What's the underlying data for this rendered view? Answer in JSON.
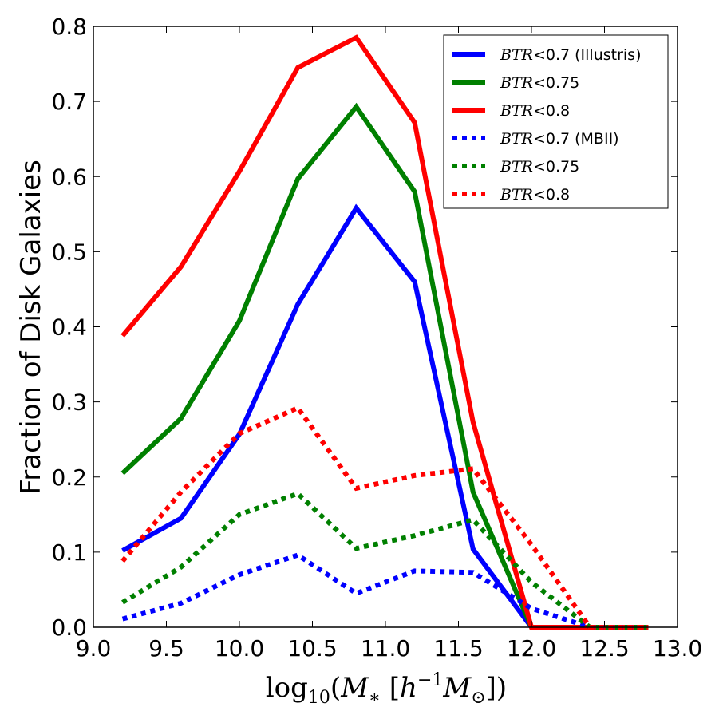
{
  "chart_data": {
    "type": "line",
    "title": "",
    "ylabel": "Fraction of Disk Galaxies",
    "xlabel": {
      "prefix": "log",
      "sub": "10",
      "open": "(",
      "var": "M",
      "var_sub": "∗",
      "bracket_open": " [",
      "h": "h",
      "h_sup": "−1",
      "msun": "M",
      "msun_sub": "⊙",
      "close": "])"
    },
    "xlim": [
      9.0,
      13.0
    ],
    "ylim": [
      0.0,
      0.8
    ],
    "xticks": [
      "9.0",
      "9.5",
      "10.0",
      "10.5",
      "11.0",
      "11.5",
      "12.0",
      "12.5",
      "13.0"
    ],
    "yticks": [
      "0.0",
      "0.1",
      "0.2",
      "0.3",
      "0.4",
      "0.5",
      "0.6",
      "0.7",
      "0.8"
    ],
    "legend_position": "top-right",
    "series": [
      {
        "name": "BTR<0.7 (Illustris)",
        "legend_math": "BTR",
        "legend_rest": "<0.7 (Illustris)",
        "color": "#0000ff",
        "style": "solid",
        "x": [
          9.2,
          9.6,
          10.0,
          10.4,
          10.8,
          11.2,
          11.6,
          12.0,
          12.4,
          12.8
        ],
        "y": [
          0.102,
          0.145,
          0.257,
          0.43,
          0.558,
          0.46,
          0.104,
          0.0,
          0.0,
          0.0
        ]
      },
      {
        "name": "BTR<0.75",
        "legend_math": "BTR",
        "legend_rest": "<0.75",
        "color": "#008000",
        "style": "solid",
        "x": [
          9.2,
          9.6,
          10.0,
          10.4,
          10.8,
          11.2,
          11.6,
          12.0,
          12.4,
          12.8
        ],
        "y": [
          0.205,
          0.278,
          0.408,
          0.597,
          0.693,
          0.58,
          0.18,
          0.0,
          0.0,
          0.0
        ]
      },
      {
        "name": "BTR<0.8",
        "legend_math": "BTR",
        "legend_rest": "<0.8",
        "color": "#ff0000",
        "style": "solid",
        "x": [
          9.2,
          9.6,
          10.0,
          10.4,
          10.8,
          11.2,
          11.6,
          12.0,
          12.4,
          12.8
        ],
        "y": [
          0.388,
          0.48,
          0.607,
          0.745,
          0.785,
          0.672,
          0.273,
          0.0,
          0.0,
          0.0
        ]
      },
      {
        "name": "BTR<0.7 (MBII)",
        "legend_math": "BTR",
        "legend_rest": "<0.7 (MBII)",
        "color": "#0000ff",
        "style": "dotted",
        "x": [
          9.2,
          9.6,
          10.0,
          10.4,
          10.8,
          11.2,
          11.6,
          12.0,
          12.4,
          12.8
        ],
        "y": [
          0.011,
          0.032,
          0.07,
          0.096,
          0.045,
          0.075,
          0.073,
          0.025,
          0.0,
          0.0
        ]
      },
      {
        "name": "BTR<0.75",
        "legend_math": "BTR",
        "legend_rest": "<0.75",
        "color": "#008000",
        "style": "dotted",
        "x": [
          9.2,
          9.6,
          10.0,
          10.4,
          10.8,
          11.2,
          11.6,
          12.0,
          12.4,
          12.8
        ],
        "y": [
          0.033,
          0.08,
          0.15,
          0.178,
          0.105,
          0.122,
          0.143,
          0.06,
          0.0,
          0.0
        ]
      },
      {
        "name": "BTR<0.8",
        "legend_math": "BTR",
        "legend_rest": "<0.8",
        "color": "#ff0000",
        "style": "dotted",
        "x": [
          9.2,
          9.6,
          10.0,
          10.4,
          10.8,
          11.2,
          11.6,
          12.0,
          12.4,
          12.8
        ],
        "y": [
          0.088,
          0.18,
          0.258,
          0.292,
          0.185,
          0.202,
          0.211,
          0.11,
          0.0,
          0.0
        ]
      }
    ]
  }
}
